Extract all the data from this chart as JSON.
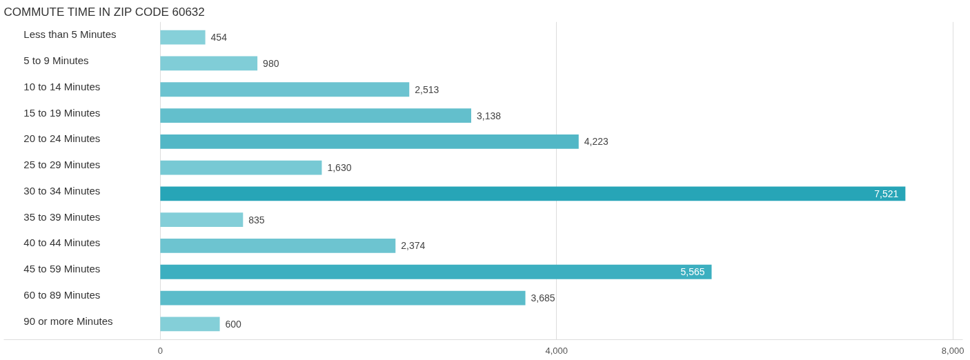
{
  "chart_data": {
    "type": "bar",
    "orientation": "horizontal",
    "title": "COMMUTE TIME IN ZIP CODE 60632",
    "categories": [
      "Less than 5 Minutes",
      "5 to 9 Minutes",
      "10 to 14 Minutes",
      "15 to 19 Minutes",
      "20 to 24 Minutes",
      "25 to 29 Minutes",
      "30 to 34 Minutes",
      "35 to 39 Minutes",
      "40 to 44 Minutes",
      "45 to 59 Minutes",
      "60 to 89 Minutes",
      "90 or more Minutes"
    ],
    "values": [
      454,
      980,
      2513,
      3138,
      4223,
      1630,
      7521,
      835,
      2374,
      5565,
      3685,
      600
    ],
    "colors": [
      "#86d0d9",
      "#80cdd7",
      "#6cc3d0",
      "#63bfcc",
      "#52b7c6",
      "#77c9d4",
      "#27a5b7",
      "#83ced8",
      "#6dc4d0",
      "#3cafc0",
      "#5bbcca",
      "#84cfd8"
    ],
    "xlim": [
      -1580,
      8100
    ],
    "xticks": [
      {
        "value": 0,
        "label": "0"
      },
      {
        "value": 4000,
        "label": "4,000"
      },
      {
        "value": 8000,
        "label": "8,000"
      }
    ],
    "value_labels": [
      "454",
      "980",
      "2,513",
      "3,138",
      "4,223",
      "1,630",
      "7,521",
      "835",
      "2,374",
      "5,565",
      "3,685",
      "600"
    ],
    "grid": "x"
  }
}
